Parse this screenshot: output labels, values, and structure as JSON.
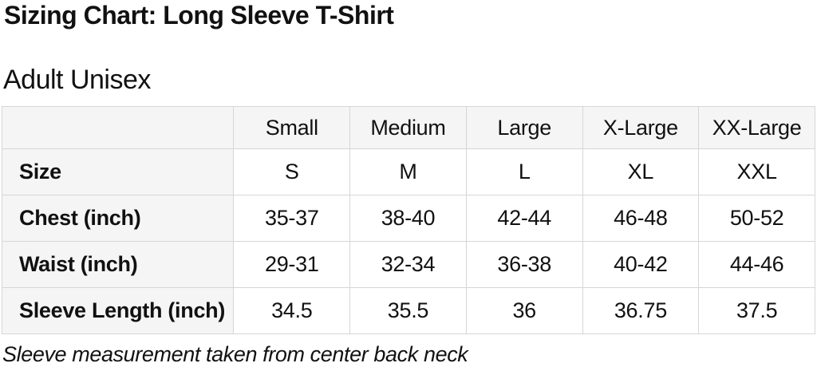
{
  "page": {
    "title": "Sizing Chart: Long Sleeve T-Shirt",
    "subtitle": "Adult Unisex",
    "footnote": "Sleeve measurement taken from center back neck"
  },
  "colors": {
    "page_bg": "#ffffff",
    "text": "#111111",
    "header_bg": "#f5f5f5",
    "cell_bg": "#ffffff",
    "border": "#d6d6d6"
  },
  "size_table": {
    "column_headers": [
      "",
      "Small",
      "Medium",
      "Large",
      "X-Large",
      "XX-Large"
    ],
    "rows": [
      {
        "label": "Size",
        "values": [
          "S",
          "M",
          "L",
          "XL",
          "XXL"
        ]
      },
      {
        "label": "Chest (inch)",
        "values": [
          "35-37",
          "38-40",
          "42-44",
          "46-48",
          "50-52"
        ]
      },
      {
        "label": "Waist (inch)",
        "values": [
          "29-31",
          "32-34",
          "36-38",
          "40-42",
          "44-46"
        ]
      },
      {
        "label": "Sleeve Length (inch)",
        "values": [
          "34.5",
          "35.5",
          "36",
          "36.75",
          "37.5"
        ]
      }
    ]
  }
}
